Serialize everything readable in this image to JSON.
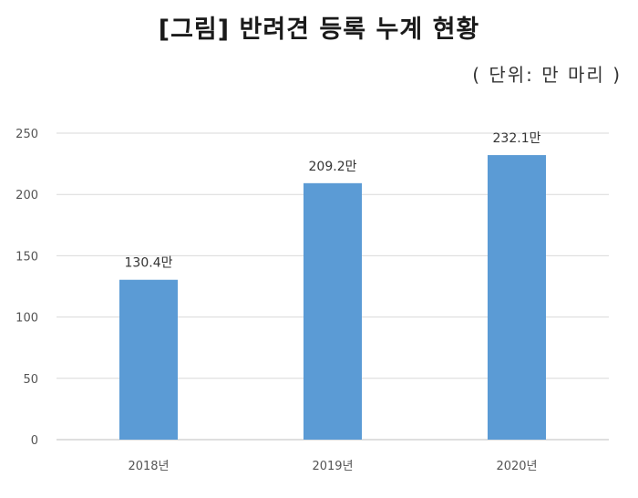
{
  "title": "[그림] 반려견 등록 누계 현황",
  "unit": "( 단위:  만 마리 )",
  "chart_data": {
    "type": "bar",
    "title": "[그림] 반려견 등록 누계 현황",
    "categories": [
      "2018년",
      "2019년",
      "2020년"
    ],
    "values": [
      130.4,
      209.2,
      232.1
    ],
    "data_labels": [
      "130.4만",
      "209.2만",
      "232.1만"
    ],
    "ylim": [
      0,
      250
    ],
    "yticks": [
      0,
      50,
      100,
      150,
      200,
      250
    ],
    "grid": true,
    "bar_color": "#5b9bd5",
    "grid_color": "#d9d9d9"
  }
}
